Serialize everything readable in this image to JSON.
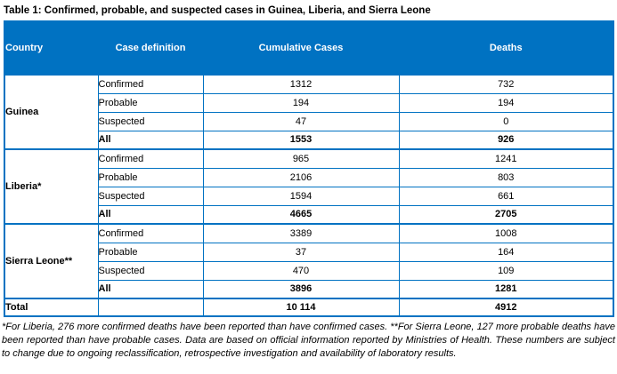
{
  "title": "Table 1: Confirmed, probable, and suspected cases in Guinea, Liberia, and Sierra Leone",
  "table": {
    "columns": [
      "Country",
      "Case definition",
      "Cumulative Cases",
      "Deaths"
    ],
    "groups": [
      {
        "country": "Guinea",
        "rows": [
          {
            "definition": "Confirmed",
            "cumulative": "1312",
            "deaths": "732",
            "bold": false
          },
          {
            "definition": "Probable",
            "cumulative": "194",
            "deaths": "194",
            "bold": false
          },
          {
            "definition": "Suspected",
            "cumulative": "47",
            "deaths": "0",
            "bold": false
          },
          {
            "definition": "All",
            "cumulative": "1553",
            "deaths": "926",
            "bold": true
          }
        ]
      },
      {
        "country": "Liberia*",
        "rows": [
          {
            "definition": "Confirmed",
            "cumulative": "965",
            "deaths": "1241",
            "bold": false
          },
          {
            "definition": "Probable",
            "cumulative": "2106",
            "deaths": "803",
            "bold": false
          },
          {
            "definition": "Suspected",
            "cumulative": "1594",
            "deaths": "661",
            "bold": false
          },
          {
            "definition": "All",
            "cumulative": "4665",
            "deaths": "2705",
            "bold": true
          }
        ]
      },
      {
        "country": "Sierra Leone**",
        "rows": [
          {
            "definition": "Confirmed",
            "cumulative": "3389",
            "deaths": "1008",
            "bold": false
          },
          {
            "definition": "Probable",
            "cumulative": "37",
            "deaths": "164",
            "bold": false
          },
          {
            "definition": "Suspected",
            "cumulative": "470",
            "deaths": "109",
            "bold": false
          },
          {
            "definition": "All",
            "cumulative": "3896",
            "deaths": "1281",
            "bold": true
          }
        ]
      }
    ],
    "total": {
      "label": "Total",
      "definition": "",
      "cumulative": "10 114",
      "deaths": "4912"
    }
  },
  "footnote": "*For Liberia, 276 more confirmed deaths have been reported than have confirmed cases. **For Sierra Leone, 127 more probable deaths have been reported than have probable cases. Data are based on official information reported by Ministries of Health. These numbers are subject to change due to ongoing reclassification, retrospective investigation and availability of laboratory results.",
  "colors": {
    "header_bg": "#0072C2",
    "header_text": "#FFFFFF",
    "border": "#0072C2",
    "body_text": "#000000"
  }
}
